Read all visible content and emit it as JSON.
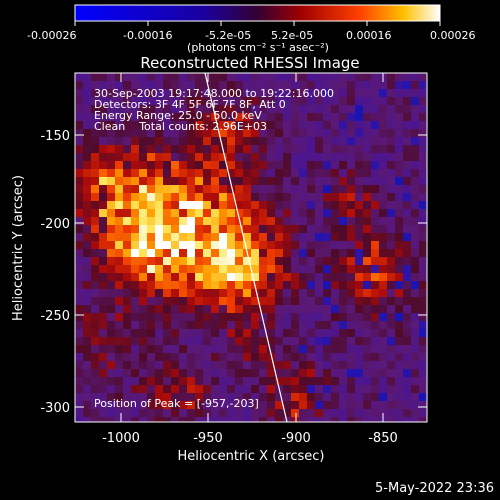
{
  "colorbar": {
    "tick_labels": [
      "-0.00026",
      "-0.00016",
      "-5.2e-05",
      "5.2e-05",
      "0.00016",
      "0.00026"
    ],
    "unit_label": "(photons cm⁻² s⁻¹ asec⁻²)"
  },
  "plot": {
    "title": "Reconstructed RHESSI Image",
    "xlabel": "Heliocentric X (arcsec)",
    "ylabel": "Heliocentric Y (arcsec)",
    "xticks": [
      "-1000",
      "-950",
      "-900",
      "-850"
    ],
    "yticks": [
      "-150",
      "-200",
      "-250",
      "-300"
    ],
    "info_lines": [
      "30-Sep-2003 19:17:48.000 to 19:22:16.000",
      "Detectors: 3F 4F 5F 6F 7F 8F, Att 0",
      "Energy Range: 25.0 - 50.0 keV",
      "Clean    Total counts: 2.96E+03"
    ],
    "peak_label": "Position of Peak = [-957,-203]"
  },
  "timestamp": "5-May-2022 23:36"
}
